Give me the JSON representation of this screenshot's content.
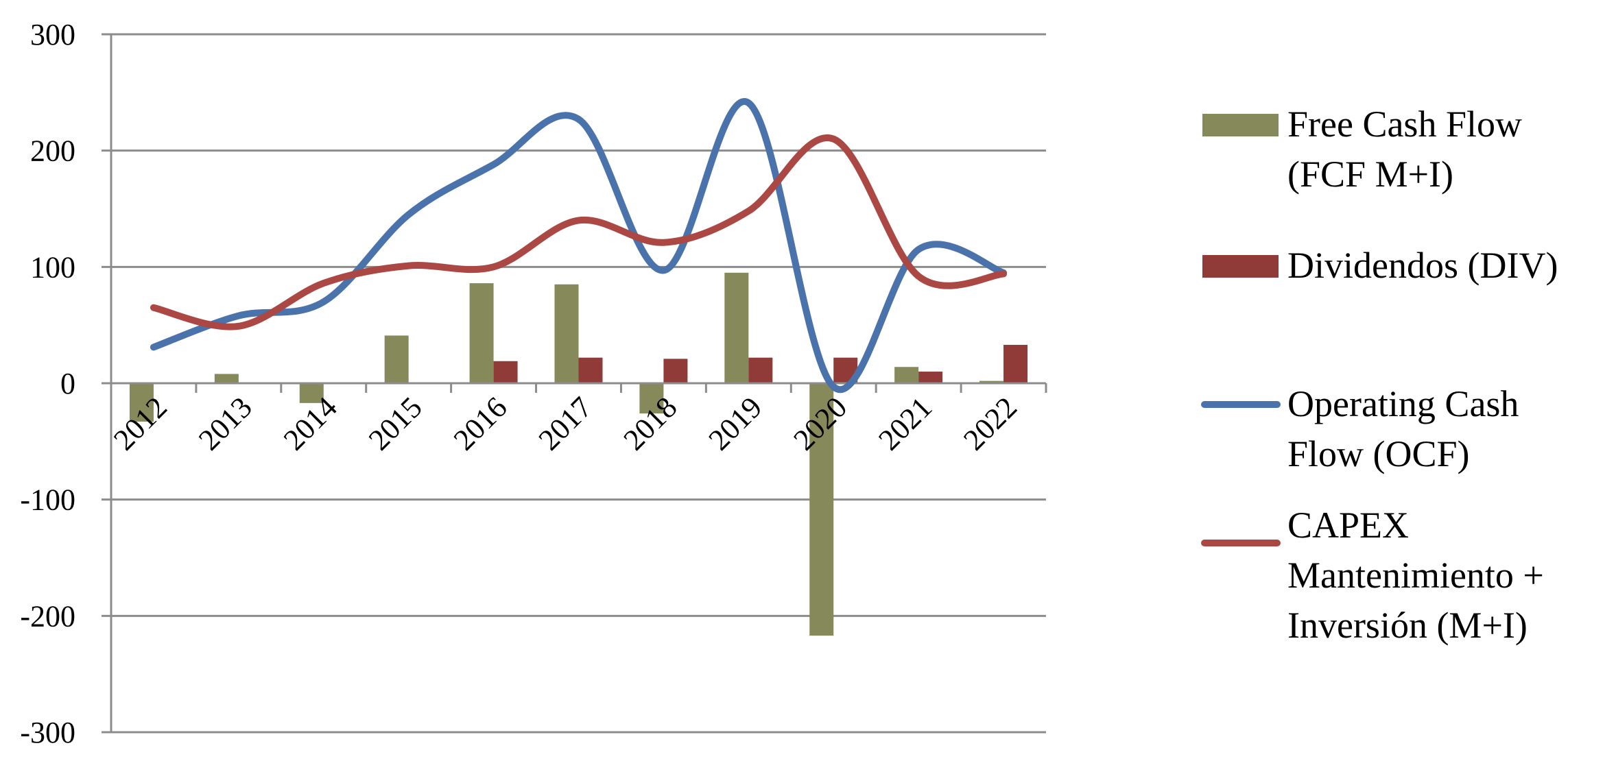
{
  "chart_data": {
    "type": "bar",
    "title": "",
    "xlabel": "",
    "ylabel": "",
    "ylim": [
      -300,
      300
    ],
    "yticks": [
      300,
      200,
      100,
      0,
      -100,
      -200,
      -300
    ],
    "ytick_labels": [
      "300",
      "200",
      "100",
      "0",
      "-100",
      "-200",
      "-300"
    ],
    "categories": [
      "2012",
      "2013",
      "2014",
      "2015",
      "2016",
      "2017",
      "2018",
      "2019",
      "2020",
      "2021",
      "2022"
    ],
    "grid": true,
    "legend_position": "right",
    "series": [
      {
        "name": "Free Cash Flow (FCF M+I)",
        "legend_lines": [
          "Free Cash Flow",
          "(FCF M+I)"
        ],
        "kind": "bar",
        "color": "#86895A",
        "values": [
          -33,
          8,
          -17,
          41,
          86,
          85,
          -26,
          95,
          -217,
          14,
          2
        ]
      },
      {
        "name": "Dividendos (DIV)",
        "legend_lines": [
          "Dividendos (DIV)"
        ],
        "kind": "bar",
        "color": "#913B38",
        "values": [
          0,
          0,
          0,
          0,
          19,
          22,
          21,
          22,
          22,
          10,
          33
        ]
      },
      {
        "name": "Operating Cash Flow (OCF)",
        "legend_lines": [
          "Operating Cash",
          "Flow (OCF)"
        ],
        "kind": "line",
        "color": "#4A72AB",
        "values": [
          31,
          58,
          70,
          145,
          188,
          227,
          97,
          241,
          -3,
          115,
          95
        ]
      },
      {
        "name": "CAPEX Mantenimiento + Inversión (M+I)",
        "legend_lines": [
          "CAPEX",
          "Mantenimiento +",
          "Inversión (M+I)"
        ],
        "kind": "line",
        "color": "#AB4844",
        "values": [
          65,
          49,
          86,
          101,
          100,
          140,
          121,
          148,
          210,
          92,
          94
        ]
      }
    ]
  }
}
